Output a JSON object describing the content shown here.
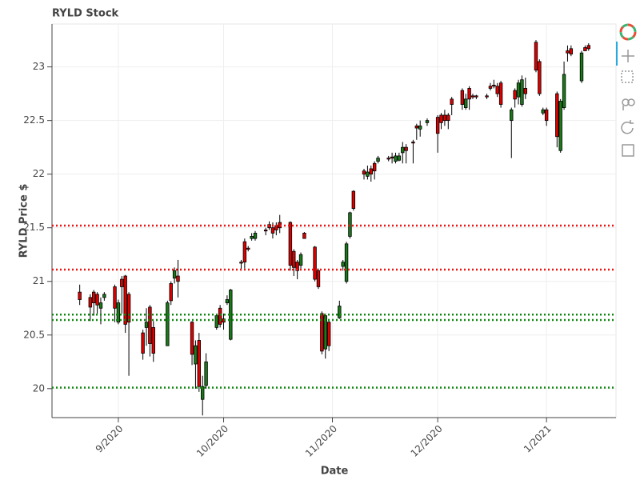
{
  "chart_data": {
    "type": "candlestick",
    "title": "RYLD Stock",
    "x_label": "Date",
    "y_label": "RYLD Price $",
    "xlim": [
      -18.9,
      141.8
    ],
    "xticks": [
      {
        "value": 0,
        "label": "9/2020"
      },
      {
        "value": 30,
        "label": "10/2020"
      },
      {
        "value": 61,
        "label": "11/2020"
      },
      {
        "value": 91,
        "label": "12/2020"
      },
      {
        "value": 122,
        "label": "1/2021"
      }
    ],
    "ylim": [
      19.73,
      23.4
    ],
    "yticks": [
      20,
      20.5,
      21,
      21.5,
      22,
      22.5,
      23
    ],
    "grid": true,
    "increasing_color": "#1a7a1a",
    "decreasing_color": "#dd0000",
    "x": [
      -11,
      -8,
      -7,
      -6,
      -5,
      -4,
      -1,
      0,
      1,
      2,
      3,
      7,
      8,
      9,
      10,
      14,
      15,
      16,
      17,
      21,
      22,
      23,
      24,
      25,
      28,
      29,
      30,
      31,
      32,
      35,
      36,
      37,
      38,
      39,
      42,
      43,
      44,
      45,
      46,
      49,
      50,
      51,
      52,
      53,
      56,
      57,
      58,
      59,
      60,
      63,
      64,
      65,
      66,
      67,
      70,
      71,
      72,
      73,
      74,
      77,
      78,
      79,
      80,
      81,
      82,
      84,
      85,
      86,
      88,
      91,
      92,
      93,
      94,
      95,
      98,
      99,
      100,
      101,
      102,
      105,
      106,
      107,
      108,
      109,
      112,
      113,
      114,
      115,
      116,
      119,
      120,
      121,
      122,
      125,
      126,
      127,
      128,
      129,
      132,
      133,
      134
    ],
    "open": [
      20.9,
      20.85,
      20.9,
      20.88,
      20.75,
      20.85,
      20.95,
      20.62,
      21.02,
      21.05,
      20.88,
      20.52,
      20.57,
      20.76,
      20.57,
      20.4,
      20.98,
      21.03,
      21.05,
      20.62,
      20.23,
      20.45,
      19.9,
      20.03,
      20.57,
      20.75,
      20.65,
      20.8,
      20.46,
      21.18,
      21.37,
      21.31,
      21.4,
      21.4,
      21.48,
      21.53,
      21.5,
      21.52,
      21.55,
      21.55,
      21.28,
      21.18,
      21.15,
      21.45,
      21.32,
      21.1,
      20.7,
      20.37,
      20.62,
      20.66,
      21.14,
      21.0,
      21.42,
      21.84,
      22.03,
      21.98,
      22.05,
      22.1,
      22.12,
      22.15,
      22.16,
      22.12,
      22.13,
      22.2,
      22.25,
      22.3,
      22.45,
      22.42,
      22.48,
      22.53,
      22.55,
      22.55,
      22.55,
      22.7,
      22.78,
      22.62,
      22.8,
      22.73,
      22.73,
      22.73,
      22.82,
      22.83,
      22.82,
      22.85,
      22.5,
      22.78,
      22.72,
      22.65,
      22.8,
      23.23,
      23.05,
      22.57,
      22.6,
      22.75,
      22.22,
      22.62,
      23.15,
      23.17,
      22.87,
      23.18,
      23.2
    ],
    "high": [
      20.97,
      20.88,
      20.92,
      20.9,
      20.85,
      20.9,
      20.97,
      20.83,
      21.05,
      21.06,
      20.9,
      20.55,
      20.75,
      20.78,
      20.63,
      20.82,
      21.0,
      21.13,
      21.2,
      20.63,
      20.45,
      20.52,
      20.12,
      20.33,
      20.7,
      20.78,
      20.7,
      20.87,
      20.93,
      21.2,
      21.4,
      21.33,
      21.45,
      21.47,
      21.5,
      21.56,
      21.55,
      21.55,
      21.62,
      21.56,
      21.3,
      21.2,
      21.27,
      21.46,
      21.33,
      21.12,
      20.72,
      20.7,
      20.65,
      20.82,
      21.2,
      21.37,
      21.65,
      21.85,
      22.05,
      22.08,
      22.08,
      22.12,
      22.17,
      22.17,
      22.2,
      22.2,
      22.2,
      22.3,
      22.28,
      22.32,
      22.47,
      22.5,
      22.52,
      22.55,
      22.57,
      22.6,
      22.57,
      22.72,
      22.8,
      22.75,
      22.82,
      22.75,
      22.74,
      22.75,
      22.85,
      22.88,
      22.85,
      22.87,
      22.62,
      22.8,
      22.88,
      22.92,
      22.9,
      23.25,
      23.07,
      22.62,
      22.62,
      22.77,
      22.7,
      23.05,
      23.2,
      23.2,
      23.15,
      23.2,
      23.22
    ],
    "low": [
      20.78,
      20.63,
      20.68,
      20.7,
      20.6,
      20.82,
      20.62,
      20.6,
      20.7,
      20.52,
      20.12,
      20.27,
      20.4,
      20.3,
      20.25,
      20.4,
      20.78,
      20.98,
      20.85,
      20.22,
      20.0,
      19.97,
      19.75,
      20.0,
      20.55,
      20.57,
      20.55,
      20.78,
      20.45,
      21.1,
      21.12,
      21.28,
      21.38,
      21.38,
      21.43,
      21.48,
      21.4,
      21.43,
      21.45,
      21.1,
      21.05,
      21.02,
      21.12,
      21.4,
      21.0,
      20.93,
      20.32,
      20.28,
      20.35,
      20.65,
      21.1,
      20.98,
      21.4,
      21.66,
      21.95,
      21.95,
      21.93,
      21.95,
      22.1,
      22.12,
      22.1,
      22.1,
      22.12,
      22.1,
      22.1,
      22.1,
      22.32,
      22.35,
      22.45,
      22.2,
      22.42,
      22.45,
      22.42,
      22.55,
      22.6,
      22.6,
      22.6,
      22.7,
      22.7,
      22.7,
      22.78,
      22.8,
      22.72,
      22.62,
      22.15,
      22.62,
      22.65,
      22.63,
      22.7,
      22.95,
      22.73,
      22.55,
      22.45,
      22.25,
      22.2,
      22.6,
      23.05,
      23.1,
      22.85,
      23.15,
      23.15
    ],
    "close": [
      20.83,
      20.76,
      20.8,
      20.78,
      20.8,
      20.88,
      20.75,
      20.8,
      20.95,
      20.6,
      20.62,
      20.33,
      20.62,
      20.42,
      20.33,
      20.8,
      20.82,
      21.1,
      21.0,
      20.32,
      20.4,
      20.02,
      20.02,
      20.25,
      20.68,
      20.6,
      20.62,
      20.83,
      20.92,
      21.17,
      21.18,
      21.3,
      21.42,
      21.45,
      21.47,
      21.5,
      21.45,
      21.48,
      21.5,
      21.15,
      21.13,
      21.1,
      21.25,
      21.4,
      21.02,
      20.95,
      20.35,
      20.68,
      20.4,
      20.77,
      21.18,
      21.35,
      21.64,
      21.68,
      22.0,
      22.02,
      22.0,
      22.03,
      22.15,
      22.14,
      22.15,
      22.17,
      22.17,
      22.25,
      22.22,
      22.29,
      22.43,
      22.45,
      22.5,
      22.38,
      22.48,
      22.5,
      22.5,
      22.65,
      22.65,
      22.7,
      22.7,
      22.72,
      22.72,
      22.72,
      22.8,
      22.82,
      22.75,
      22.65,
      22.6,
      22.7,
      22.85,
      22.88,
      22.75,
      22.97,
      22.75,
      22.6,
      22.5,
      22.35,
      22.68,
      22.93,
      23.13,
      23.12,
      23.13,
      23.15,
      23.17
    ],
    "hlines": [
      {
        "value": 21.52,
        "color": "#ee1111"
      },
      {
        "value": 21.11,
        "color": "#ee1111"
      },
      {
        "value": 20.69,
        "color": "#118811"
      },
      {
        "value": 20.64,
        "color": "#118811"
      },
      {
        "value": 20.01,
        "color": "#118811"
      }
    ]
  }
}
